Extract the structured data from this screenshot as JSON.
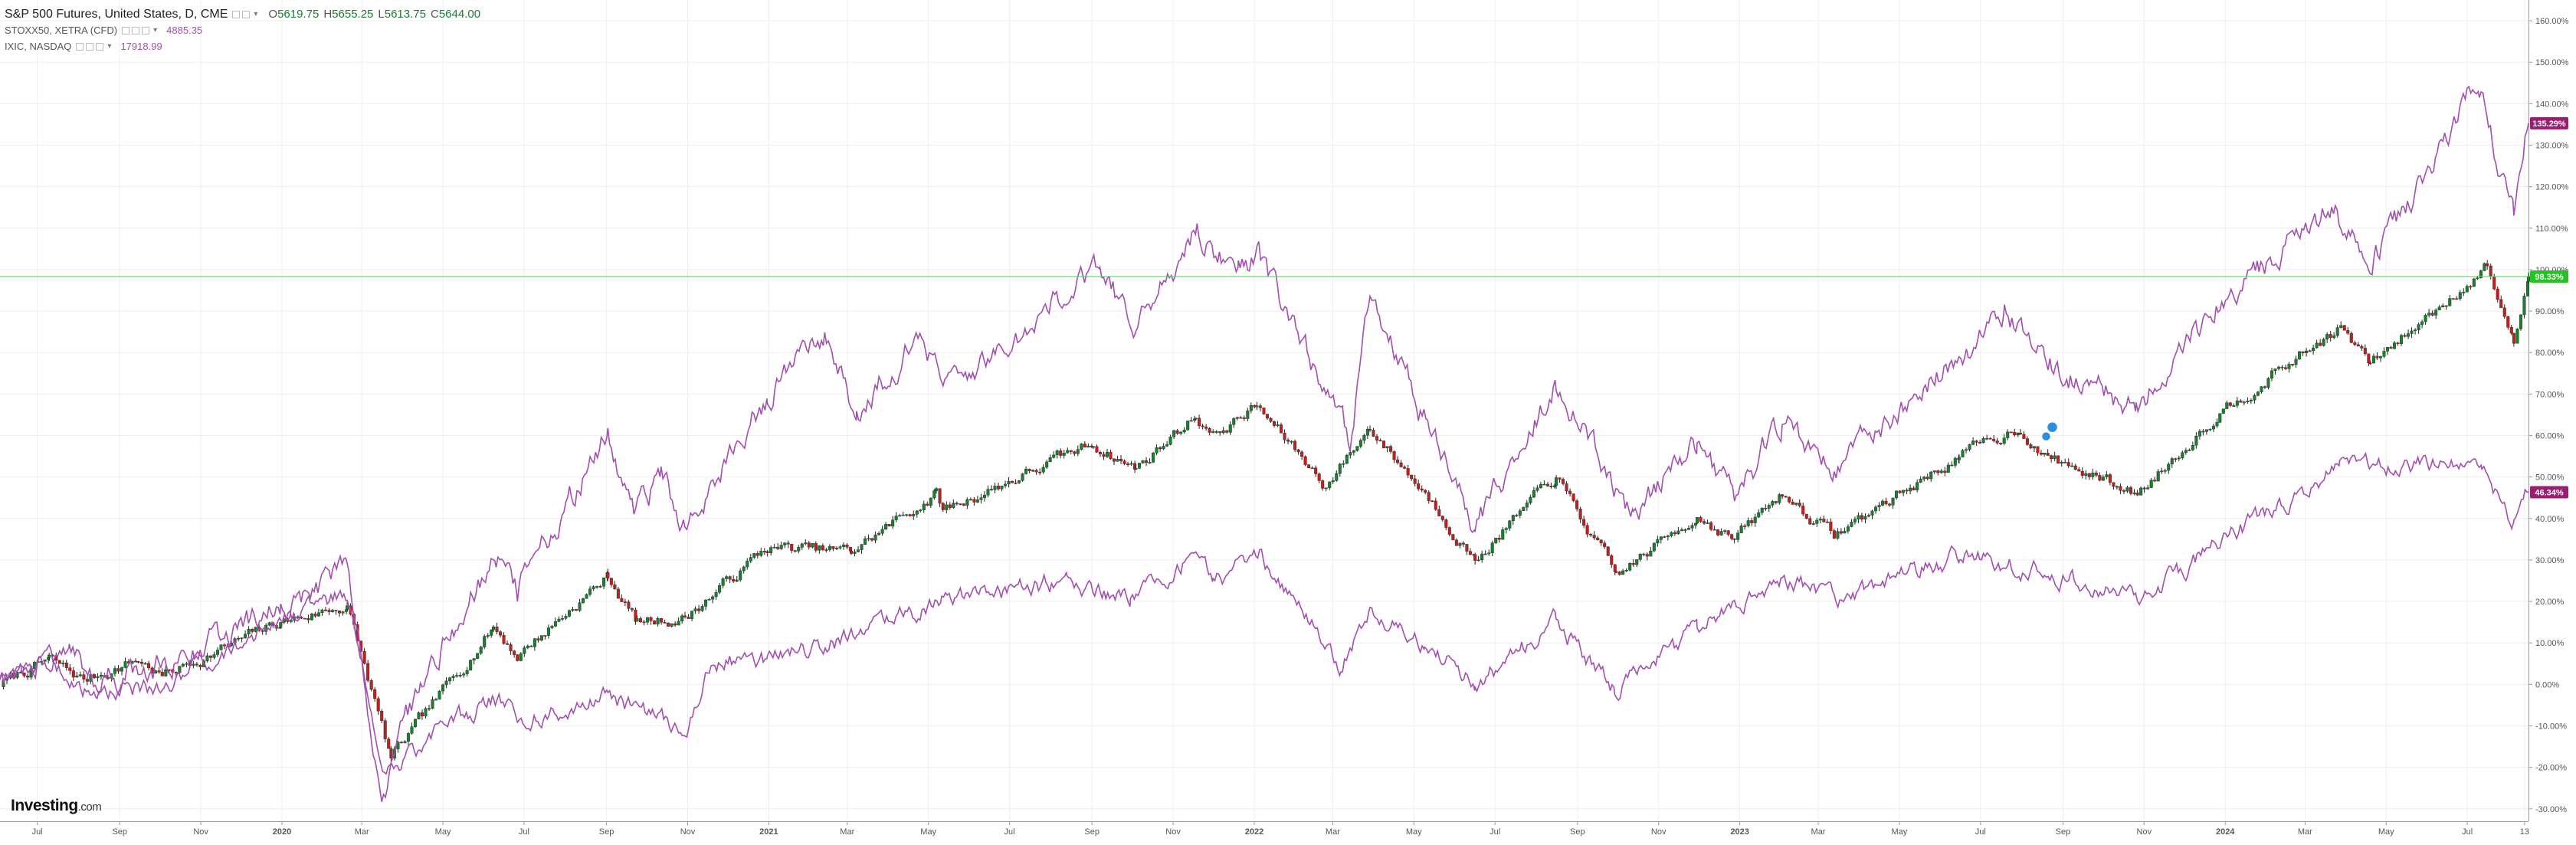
{
  "legend": {
    "main": {
      "title": "S&P 500 Futures, United States, D, CME",
      "o_label": "O",
      "o": "5619.75",
      "h_label": "H",
      "h": "5655.25",
      "l_label": "L",
      "l": "5613.75",
      "c_label": "C",
      "c": "5644.00"
    },
    "series1": {
      "name": "STOXX50, XETRA (CFD)",
      "value": "4885.35"
    },
    "series2": {
      "name": "IXIC, NASDAQ",
      "value": "17918.99"
    }
  },
  "logo": {
    "main": "Investing",
    "suffix": ".com"
  },
  "colors": {
    "up": "#1a7f2e",
    "down": "#c0211f",
    "compare": "#a24fb0",
    "badge_compare": "#9c1c72",
    "badge_main": "#22c322",
    "hline": "#5fd35f",
    "grid": "#eeeeee",
    "axis_text": "#555555"
  },
  "chart_data": {
    "type": "line",
    "y_axis": {
      "unit": "%",
      "min": -33,
      "max": 165,
      "ticks": [
        -30,
        -20,
        -10,
        0,
        10,
        20,
        30,
        40,
        50,
        60,
        70,
        80,
        90,
        100,
        110,
        120,
        130,
        140,
        150,
        160
      ]
    },
    "y_tick_labels": [
      "-30.00%",
      "-20.00%",
      "-10.00%",
      "0.00%",
      "10.00%",
      "20.00%",
      "30.00%",
      "40.00%",
      "50.00%",
      "60.00%",
      "70.00%",
      "80.00%",
      "90.00%",
      "100.00%",
      "110.00%",
      "120.00%",
      "130.00%",
      "140.00%",
      "150.00%",
      "160.00%"
    ],
    "x_axis": {
      "start": "2019-06-03",
      "end": "2024-08-16"
    },
    "x_ticks": [
      {
        "date": "2019-07-01",
        "label": "Jul"
      },
      {
        "date": "2019-09-01",
        "label": "Sep"
      },
      {
        "date": "2019-11-01",
        "label": "Nov"
      },
      {
        "date": "2020-01-01",
        "label": "2020",
        "bold": true
      },
      {
        "date": "2020-03-01",
        "label": "Mar"
      },
      {
        "date": "2020-05-01",
        "label": "May"
      },
      {
        "date": "2020-07-01",
        "label": "Jul"
      },
      {
        "date": "2020-09-01",
        "label": "Sep"
      },
      {
        "date": "2020-11-01",
        "label": "Nov"
      },
      {
        "date": "2021-01-01",
        "label": "2021",
        "bold": true
      },
      {
        "date": "2021-03-01",
        "label": "Mar"
      },
      {
        "date": "2021-05-01",
        "label": "May"
      },
      {
        "date": "2021-07-01",
        "label": "Jul"
      },
      {
        "date": "2021-09-01",
        "label": "Sep"
      },
      {
        "date": "2021-11-01",
        "label": "Nov"
      },
      {
        "date": "2022-01-01",
        "label": "2022",
        "bold": true
      },
      {
        "date": "2022-03-01",
        "label": "Mar"
      },
      {
        "date": "2022-05-01",
        "label": "May"
      },
      {
        "date": "2022-07-01",
        "label": "Jul"
      },
      {
        "date": "2022-09-01",
        "label": "Sep"
      },
      {
        "date": "2022-11-01",
        "label": "Nov"
      },
      {
        "date": "2023-01-01",
        "label": "2023",
        "bold": true
      },
      {
        "date": "2023-03-01",
        "label": "Mar"
      },
      {
        "date": "2023-05-01",
        "label": "May"
      },
      {
        "date": "2023-07-01",
        "label": "Jul"
      },
      {
        "date": "2023-09-01",
        "label": "Sep"
      },
      {
        "date": "2023-11-01",
        "label": "Nov"
      },
      {
        "date": "2024-01-01",
        "label": "2024",
        "bold": true
      },
      {
        "date": "2024-03-01",
        "label": "Mar"
      },
      {
        "date": "2024-05-01",
        "label": "May"
      },
      {
        "date": "2024-07-01",
        "label": "Jul"
      },
      {
        "date": "2024-08-13",
        "label": "13"
      }
    ],
    "series": [
      {
        "name": "S&P 500 Futures",
        "style": "candles",
        "last": 98.33,
        "last_label": "98.33%",
        "points": [
          [
            "2019-06-03",
            0
          ],
          [
            "2019-07-10",
            6
          ],
          [
            "2019-08-05",
            1
          ],
          [
            "2019-09-15",
            6
          ],
          [
            "2019-10-03",
            2
          ],
          [
            "2019-12-31",
            15
          ],
          [
            "2020-02-19",
            19
          ],
          [
            "2020-03-23",
            -18
          ],
          [
            "2020-06-08",
            14
          ],
          [
            "2020-06-26",
            7
          ],
          [
            "2020-09-02",
            26
          ],
          [
            "2020-09-24",
            15
          ],
          [
            "2020-10-30",
            16
          ],
          [
            "2020-12-31",
            33
          ],
          [
            "2021-03-04",
            32
          ],
          [
            "2021-05-07",
            46
          ],
          [
            "2021-05-12",
            42
          ],
          [
            "2021-09-02",
            58
          ],
          [
            "2021-10-04",
            52
          ],
          [
            "2021-11-18",
            65
          ],
          [
            "2021-12-01",
            60
          ],
          [
            "2022-01-03",
            67
          ],
          [
            "2022-02-24",
            48
          ],
          [
            "2022-03-29",
            62
          ],
          [
            "2022-05-20",
            42
          ],
          [
            "2022-06-16",
            30
          ],
          [
            "2022-08-16",
            50
          ],
          [
            "2022-09-30",
            26
          ],
          [
            "2022-11-30",
            41
          ],
          [
            "2022-12-28",
            35
          ],
          [
            "2023-02-02",
            46
          ],
          [
            "2023-03-13",
            36
          ],
          [
            "2023-06-15",
            55
          ],
          [
            "2023-07-31",
            62
          ],
          [
            "2023-08-18",
            55
          ],
          [
            "2023-10-27",
            46
          ],
          [
            "2023-12-28",
            66
          ],
          [
            "2024-03-28",
            86
          ],
          [
            "2024-04-19",
            77
          ],
          [
            "2024-07-16",
            101
          ],
          [
            "2024-08-05",
            82
          ],
          [
            "2024-08-16",
            98.33
          ]
        ]
      },
      {
        "name": "IXIC",
        "style": "line",
        "last": 135.29,
        "last_label": "135.29%",
        "points": [
          [
            "2019-06-03",
            0
          ],
          [
            "2019-07-25",
            10
          ],
          [
            "2019-08-15",
            1
          ],
          [
            "2019-10-02",
            5
          ],
          [
            "2019-12-31",
            18
          ],
          [
            "2020-02-19",
            28
          ],
          [
            "2020-03-16",
            -28
          ],
          [
            "2020-04-14",
            1
          ],
          [
            "2020-06-10",
            31
          ],
          [
            "2020-06-26",
            23
          ],
          [
            "2020-09-02",
            60
          ],
          [
            "2020-09-23",
            41
          ],
          [
            "2020-10-12",
            50
          ],
          [
            "2020-10-30",
            38
          ],
          [
            "2020-12-31",
            70
          ],
          [
            "2021-02-12",
            85
          ],
          [
            "2021-03-08",
            65
          ],
          [
            "2021-04-26",
            85
          ],
          [
            "2021-05-12",
            70
          ],
          [
            "2021-09-07",
            100
          ],
          [
            "2021-10-04",
            86
          ],
          [
            "2021-11-19",
            110
          ],
          [
            "2021-12-20",
            98
          ],
          [
            "2022-01-03",
            104
          ],
          [
            "2022-03-14",
            58
          ],
          [
            "2022-03-29",
            93
          ],
          [
            "2022-06-16",
            37
          ],
          [
            "2022-08-16",
            72
          ],
          [
            "2022-10-13",
            41
          ],
          [
            "2022-11-30",
            58
          ],
          [
            "2022-12-28",
            45
          ],
          [
            "2023-02-02",
            63
          ],
          [
            "2023-03-13",
            52
          ],
          [
            "2023-07-19",
            89
          ],
          [
            "2023-08-18",
            78
          ],
          [
            "2023-10-26",
            66
          ],
          [
            "2023-12-28",
            92
          ],
          [
            "2024-03-21",
            115
          ],
          [
            "2024-04-19",
            101
          ],
          [
            "2024-07-10",
            145
          ],
          [
            "2024-08-05",
            112
          ],
          [
            "2024-08-16",
            135.29
          ]
        ]
      },
      {
        "name": "STOXX50",
        "style": "line",
        "last": 46.34,
        "last_label": "46.34%",
        "points": [
          [
            "2019-06-03",
            0
          ],
          [
            "2019-07-10",
            6
          ],
          [
            "2019-08-15",
            -4
          ],
          [
            "2019-10-03",
            0
          ],
          [
            "2019-12-31",
            15
          ],
          [
            "2020-02-19",
            22
          ],
          [
            "2020-03-18",
            -21
          ],
          [
            "2020-06-08",
            -3
          ],
          [
            "2020-06-26",
            -8
          ],
          [
            "2020-09-02",
            -3
          ],
          [
            "2020-10-30",
            -12
          ],
          [
            "2020-11-20",
            5
          ],
          [
            "2020-12-31",
            6
          ],
          [
            "2021-03-04",
            11
          ],
          [
            "2021-05-11",
            20
          ],
          [
            "2021-08-13",
            25
          ],
          [
            "2021-09-30",
            20
          ],
          [
            "2021-11-18",
            31
          ],
          [
            "2021-12-01",
            24
          ],
          [
            "2022-01-05",
            31
          ],
          [
            "2022-03-07",
            5
          ],
          [
            "2022-03-29",
            18
          ],
          [
            "2022-05-09",
            10
          ],
          [
            "2022-06-16",
            0
          ],
          [
            "2022-08-16",
            15
          ],
          [
            "2022-09-29",
            -2
          ],
          [
            "2022-11-30",
            13
          ],
          [
            "2023-02-02",
            26
          ],
          [
            "2023-03-13",
            20
          ],
          [
            "2023-06-15",
            31
          ],
          [
            "2023-08-18",
            27
          ],
          [
            "2023-10-27",
            20
          ],
          [
            "2023-12-28",
            34
          ],
          [
            "2024-03-27",
            52
          ],
          [
            "2024-05-15",
            53
          ],
          [
            "2024-07-12",
            51
          ],
          [
            "2024-08-05",
            39
          ],
          [
            "2024-08-16",
            46.34
          ]
        ]
      }
    ],
    "hline": 98.33
  }
}
